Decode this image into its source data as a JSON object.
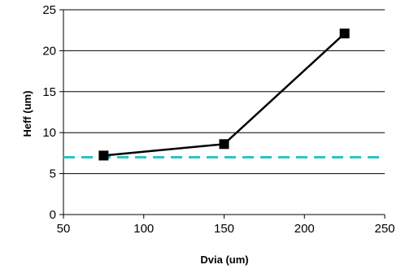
{
  "chart_data": {
    "type": "line",
    "title": "",
    "xlabel": "Dvia (um)",
    "ylabel": "Heff (um)",
    "xlim": [
      50,
      250
    ],
    "ylim": [
      0,
      25
    ],
    "x_ticks": [
      50,
      100,
      150,
      200,
      250
    ],
    "y_ticks": [
      0,
      5,
      10,
      15,
      20,
      25
    ],
    "grid": "horizontal",
    "legend": "none",
    "series": [
      {
        "x": [
          75,
          150,
          225
        ],
        "y": [
          7.2,
          8.6,
          22.1
        ],
        "color": "#000000",
        "marker": "square"
      }
    ],
    "reference_lines": [
      {
        "orientation": "horizontal",
        "y": 7,
        "style": "dashed",
        "color": "#2ec4c4"
      }
    ]
  }
}
